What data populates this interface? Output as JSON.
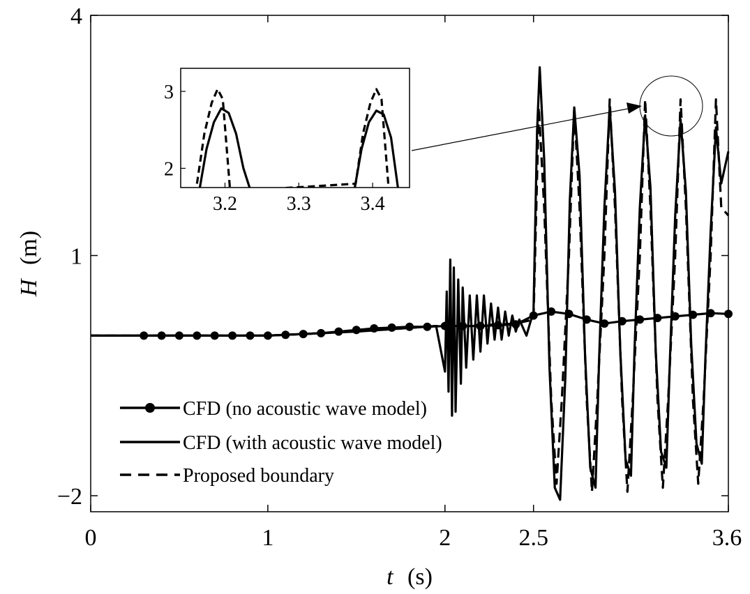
{
  "chart_data": [
    {
      "type": "line",
      "xlabel": "t",
      "xunit": "(s)",
      "ylabel": "H",
      "yunit": "(m)",
      "xlim": [
        0,
        3.6
      ],
      "ylim": [
        -2.2,
        4.0
      ],
      "xticks": [
        0,
        1,
        2,
        2.5,
        3.6
      ],
      "xtick_labels": [
        "0",
        "1",
        "2",
        "2.5",
        "3.6"
      ],
      "yticks": [
        -2,
        1,
        4
      ],
      "ytick_labels": [
        "−2",
        "1",
        "4"
      ],
      "legend_position": "bottom-left",
      "series": [
        {
          "name": "CFD (no acoustic wave model)",
          "style": "solid-with-circle-markers",
          "x": [
            0,
            0.3,
            0.4,
            0.5,
            0.6,
            0.7,
            0.8,
            0.9,
            1.0,
            1.1,
            1.2,
            1.3,
            1.4,
            1.5,
            1.6,
            1.7,
            1.8,
            1.9,
            2.0,
            2.1,
            2.2,
            2.3,
            2.4,
            2.5,
            2.6,
            2.7,
            2.8,
            2.9,
            3.0,
            3.1,
            3.2,
            3.3,
            3.4,
            3.5,
            3.6
          ],
          "y": [
            0.0,
            0.0,
            0.0,
            0.0,
            0.0,
            0.0,
            0.0,
            0.0,
            0.0,
            0.01,
            0.02,
            0.03,
            0.05,
            0.07,
            0.09,
            0.1,
            0.11,
            0.11,
            0.12,
            0.12,
            0.12,
            0.13,
            0.14,
            0.25,
            0.3,
            0.27,
            0.2,
            0.15,
            0.18,
            0.2,
            0.22,
            0.24,
            0.26,
            0.28,
            0.27
          ]
        },
        {
          "name": "CFD (with acoustic wave model)",
          "style": "solid",
          "x": [
            0.0,
            1.0,
            1.5,
            1.95,
            2.0,
            2.01,
            2.02,
            2.03,
            2.04,
            2.05,
            2.06,
            2.075,
            2.09,
            2.1,
            2.12,
            2.14,
            2.16,
            2.18,
            2.2,
            2.22,
            2.24,
            2.26,
            2.28,
            2.3,
            2.32,
            2.34,
            2.36,
            2.38,
            2.4,
            2.42,
            2.44,
            2.46,
            2.48,
            2.5,
            2.52,
            2.535,
            2.56,
            2.59,
            2.62,
            2.65,
            2.68,
            2.705,
            2.73,
            2.76,
            2.79,
            2.82,
            2.85,
            2.87,
            2.9,
            2.93,
            2.96,
            2.99,
            3.02,
            3.05,
            3.07,
            3.1,
            3.13,
            3.16,
            3.19,
            3.22,
            3.25,
            3.27,
            3.3,
            3.33,
            3.36,
            3.39,
            3.42,
            3.45,
            3.47,
            3.5,
            3.53,
            3.56,
            3.6
          ],
          "y": [
            0.0,
            0.0,
            0.05,
            0.12,
            -0.45,
            0.55,
            -0.7,
            0.95,
            -1.0,
            0.85,
            -0.95,
            0.7,
            -0.6,
            0.6,
            -0.4,
            0.5,
            -0.3,
            0.5,
            -0.2,
            0.5,
            -0.1,
            0.4,
            -0.05,
            0.35,
            -0.05,
            0.3,
            0.0,
            0.25,
            0.05,
            0.2,
            0.1,
            0.0,
            0.15,
            0.3,
            2.55,
            3.35,
            2.2,
            -0.4,
            -1.9,
            -2.05,
            -0.5,
            1.7,
            2.85,
            2.0,
            -0.2,
            -1.65,
            -1.9,
            -0.3,
            1.6,
            2.85,
            1.8,
            -0.2,
            -1.55,
            -1.75,
            -0.2,
            1.6,
            2.75,
            1.85,
            -0.2,
            -1.45,
            -1.65,
            -0.3,
            1.5,
            2.7,
            1.8,
            -0.1,
            -1.35,
            -1.6,
            -0.3,
            1.3,
            2.6,
            1.9,
            2.3
          ]
        },
        {
          "name": "Proposed boundary",
          "style": "dashed",
          "x": [
            0.0,
            1.0,
            1.5,
            1.95,
            2.0,
            2.1,
            2.2,
            2.3,
            2.4,
            2.5,
            2.53,
            2.56,
            2.6,
            2.63,
            2.66,
            2.7,
            2.73,
            2.76,
            2.8,
            2.83,
            2.86,
            2.9,
            2.93,
            2.96,
            3.0,
            3.03,
            3.06,
            3.1,
            3.13,
            3.16,
            3.2,
            3.23,
            3.26,
            3.3,
            3.33,
            3.36,
            3.4,
            3.43,
            3.46,
            3.5,
            3.53,
            3.56,
            3.6
          ],
          "y": [
            0.0,
            0.0,
            0.05,
            0.12,
            0.12,
            0.12,
            0.13,
            0.14,
            0.15,
            0.2,
            2.85,
            1.6,
            -0.8,
            -1.85,
            -0.8,
            1.0,
            2.85,
            1.6,
            -0.8,
            -1.95,
            -0.8,
            1.0,
            2.95,
            1.6,
            -0.8,
            -1.95,
            -0.8,
            1.0,
            2.95,
            1.6,
            -0.8,
            -1.9,
            -0.8,
            1.0,
            2.95,
            1.6,
            -0.8,
            -1.85,
            -0.8,
            1.0,
            2.95,
            1.6,
            1.5
          ]
        }
      ]
    },
    {
      "type": "line",
      "role": "inset",
      "xlim": [
        3.14,
        3.45
      ],
      "ylim": [
        1.75,
        3.3
      ],
      "xticks": [
        3.2,
        3.3,
        3.4
      ],
      "xtick_labels": [
        "3.2",
        "3.3",
        "3.4"
      ],
      "yticks": [
        2,
        3
      ],
      "ytick_labels": [
        "2",
        "3"
      ],
      "series": [
        {
          "name": "CFD (with acoustic wave model)",
          "style": "solid",
          "x": [
            3.165,
            3.175,
            3.185,
            3.195,
            3.205,
            3.215,
            3.225,
            3.235,
            3.245,
            3.255,
            3.265,
            3.275,
            3.285,
            3.295,
            3.305,
            3.315,
            3.325,
            3.335,
            3.345,
            3.355,
            3.365,
            3.375,
            3.385,
            3.395,
            3.405,
            3.415,
            3.425,
            3.435
          ],
          "y": [
            1.7,
            2.25,
            2.6,
            2.78,
            2.72,
            2.45,
            2.0,
            1.7,
            null,
            null,
            null,
            null,
            null,
            null,
            null,
            null,
            null,
            null,
            null,
            null,
            null,
            1.7,
            2.25,
            2.6,
            2.75,
            2.7,
            2.4,
            1.7
          ]
        },
        {
          "name": "Proposed boundary",
          "style": "dashed",
          "x": [
            3.162,
            3.172,
            3.182,
            3.19,
            3.197,
            3.202,
            3.207,
            3.377,
            3.387,
            3.397,
            3.405,
            3.412,
            3.417,
            3.422
          ],
          "y": [
            1.8,
            2.45,
            2.85,
            3.03,
            2.9,
            2.3,
            1.7,
            1.8,
            2.45,
            2.85,
            3.03,
            2.9,
            2.3,
            1.7
          ]
        }
      ]
    }
  ]
}
